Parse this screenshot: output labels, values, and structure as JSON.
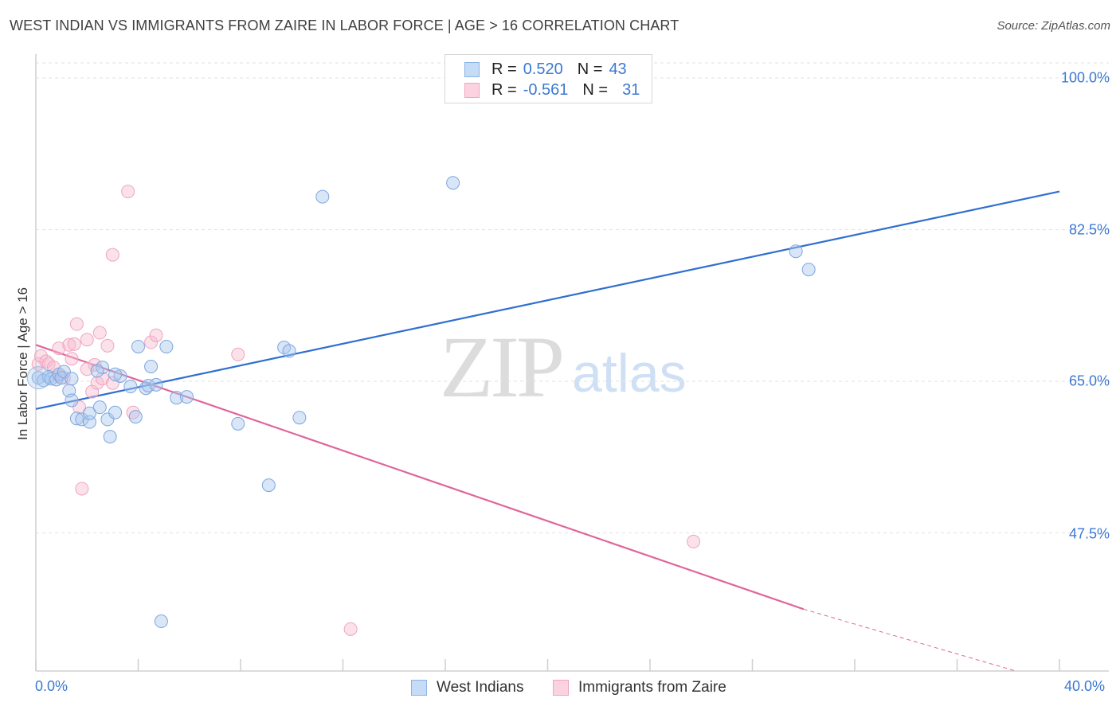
{
  "header": {
    "title": "WEST INDIAN VS IMMIGRANTS FROM ZAIRE IN LABOR FORCE | AGE > 16 CORRELATION CHART",
    "source": "Source: ZipAtlas.com"
  },
  "watermark": {
    "zip": "ZIP",
    "atlas": "atlas"
  },
  "legend": {
    "rows": [
      {
        "r_label": "R =",
        "r_value": "0.520",
        "n_label": "N =",
        "n_value": "43",
        "color": "#a9c8ee"
      },
      {
        "r_label": "R =",
        "r_value": "-0.561",
        "n_label": "N =",
        "n_value": "31",
        "color": "#f6bcd0"
      }
    ]
  },
  "bottom_legend": {
    "series1": "West Indians",
    "series2": "Immigrants from Zaire"
  },
  "axes": {
    "ylabel": "In Labor Force | Age > 16",
    "y_ticks": [
      "100.0%",
      "82.5%",
      "65.0%",
      "47.5%"
    ],
    "x_min_label": "0.0%",
    "x_max_label": "40.0%"
  },
  "chart_data": {
    "type": "scatter",
    "title": "WEST INDIAN VS IMMIGRANTS FROM ZAIRE IN LABOR FORCE | AGE > 16 CORRELATION CHART",
    "xlabel": "",
    "ylabel": "In Labor Force | Age > 16",
    "xlim": [
      0,
      40
    ],
    "ylim": [
      35,
      102
    ],
    "y_ticks": [
      47.5,
      65.0,
      82.5,
      100.0
    ],
    "grid": true,
    "colors": {
      "west_indians": "#a9c8ee",
      "west_indians_line": "#2f6fd0",
      "zaire": "#f6bcd0",
      "zaire_line": "#e0659a"
    },
    "series": [
      {
        "name": "West Indians",
        "r": 0.52,
        "n": 43,
        "trend": {
          "x0": 0,
          "y0": 61.8,
          "x1": 40,
          "y1": 86.9
        },
        "points": [
          [
            0.1,
            65.4
          ],
          [
            0.3,
            65.1
          ],
          [
            0.5,
            65.5
          ],
          [
            0.6,
            65.3
          ],
          [
            0.8,
            65.2
          ],
          [
            0.9,
            65.8
          ],
          [
            1.0,
            65.4
          ],
          [
            1.1,
            66.1
          ],
          [
            1.4,
            65.3
          ],
          [
            1.3,
            63.9
          ],
          [
            1.4,
            62.8
          ],
          [
            1.6,
            60.7
          ],
          [
            1.8,
            60.6
          ],
          [
            2.1,
            60.3
          ],
          [
            2.1,
            61.3
          ],
          [
            2.5,
            62.0
          ],
          [
            2.6,
            66.6
          ],
          [
            2.4,
            66.2
          ],
          [
            2.8,
            60.6
          ],
          [
            2.9,
            58.6
          ],
          [
            3.1,
            61.4
          ],
          [
            3.3,
            65.6
          ],
          [
            3.1,
            65.8
          ],
          [
            3.7,
            64.4
          ],
          [
            3.9,
            60.9
          ],
          [
            4.0,
            69.0
          ],
          [
            4.3,
            64.2
          ],
          [
            4.4,
            64.5
          ],
          [
            4.5,
            66.7
          ],
          [
            4.7,
            64.6
          ],
          [
            5.1,
            69.0
          ],
          [
            5.5,
            63.1
          ],
          [
            5.9,
            63.2
          ],
          [
            7.9,
            60.1
          ],
          [
            9.1,
            53.0
          ],
          [
            9.7,
            68.9
          ],
          [
            9.9,
            68.5
          ],
          [
            10.3,
            60.8
          ],
          [
            11.2,
            86.3
          ],
          [
            16.3,
            87.9
          ],
          [
            29.7,
            80.0
          ],
          [
            30.2,
            77.9
          ],
          [
            4.9,
            37.3
          ]
        ]
      },
      {
        "name": "Immigrants from Zaire",
        "r": -0.561,
        "n": 31,
        "trend": {
          "x0": 0,
          "y0": 69.2,
          "x1": 30,
          "y1": 38.7,
          "dash_to_x": 40,
          "dash_to_y": 28.5
        },
        "points": [
          [
            0.1,
            67.0
          ],
          [
            0.2,
            67.9
          ],
          [
            0.4,
            67.3
          ],
          [
            0.5,
            67.0
          ],
          [
            0.7,
            66.6
          ],
          [
            0.9,
            65.6
          ],
          [
            1.1,
            65.4
          ],
          [
            0.9,
            68.8
          ],
          [
            1.3,
            69.2
          ],
          [
            1.4,
            67.6
          ],
          [
            1.5,
            69.3
          ],
          [
            1.6,
            71.6
          ],
          [
            1.7,
            62.0
          ],
          [
            1.8,
            52.6
          ],
          [
            2.0,
            69.8
          ],
          [
            2.2,
            63.8
          ],
          [
            2.3,
            66.9
          ],
          [
            2.4,
            64.8
          ],
          [
            2.5,
            70.6
          ],
          [
            2.6,
            65.3
          ],
          [
            2.8,
            69.1
          ],
          [
            3.0,
            64.8
          ],
          [
            3.0,
            79.6
          ],
          [
            3.6,
            86.9
          ],
          [
            3.8,
            61.4
          ],
          [
            4.5,
            69.5
          ],
          [
            4.7,
            70.3
          ],
          [
            7.9,
            68.1
          ],
          [
            12.3,
            36.4
          ],
          [
            25.7,
            46.5
          ],
          [
            2.0,
            66.4
          ]
        ]
      }
    ]
  }
}
